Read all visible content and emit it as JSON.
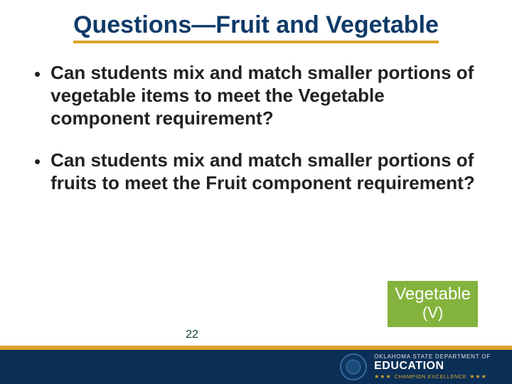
{
  "title": "Questions—Fruit and Vegetable",
  "bullets": [
    "Can students mix and match smaller portions of vegetable items to meet the Vegetable component requirement?",
    "Can students mix and match smaller portions of fruits to meet the Fruit component requirement?"
  ],
  "callout": {
    "label": "Vegetable",
    "sub": "(V)",
    "bg": "#84b33d",
    "text_color": "#ffffff"
  },
  "page_number": "22",
  "logo": {
    "line1": "OKLAHOMA STATE DEPARTMENT OF",
    "line2": "EDUCATION",
    "tagline": "CHAMPION EXCELLENCE"
  },
  "colors": {
    "title": "#0f3a68",
    "underline": "#d9a52e",
    "body_text": "#222222",
    "footer_bg": "#0b2f56",
    "footer_accent": "#d9a52e",
    "background": "#ffffff"
  },
  "fonts": {
    "title_size_pt": 26,
    "body_size_pt": 20,
    "title_weight": 700,
    "body_weight": 700
  }
}
